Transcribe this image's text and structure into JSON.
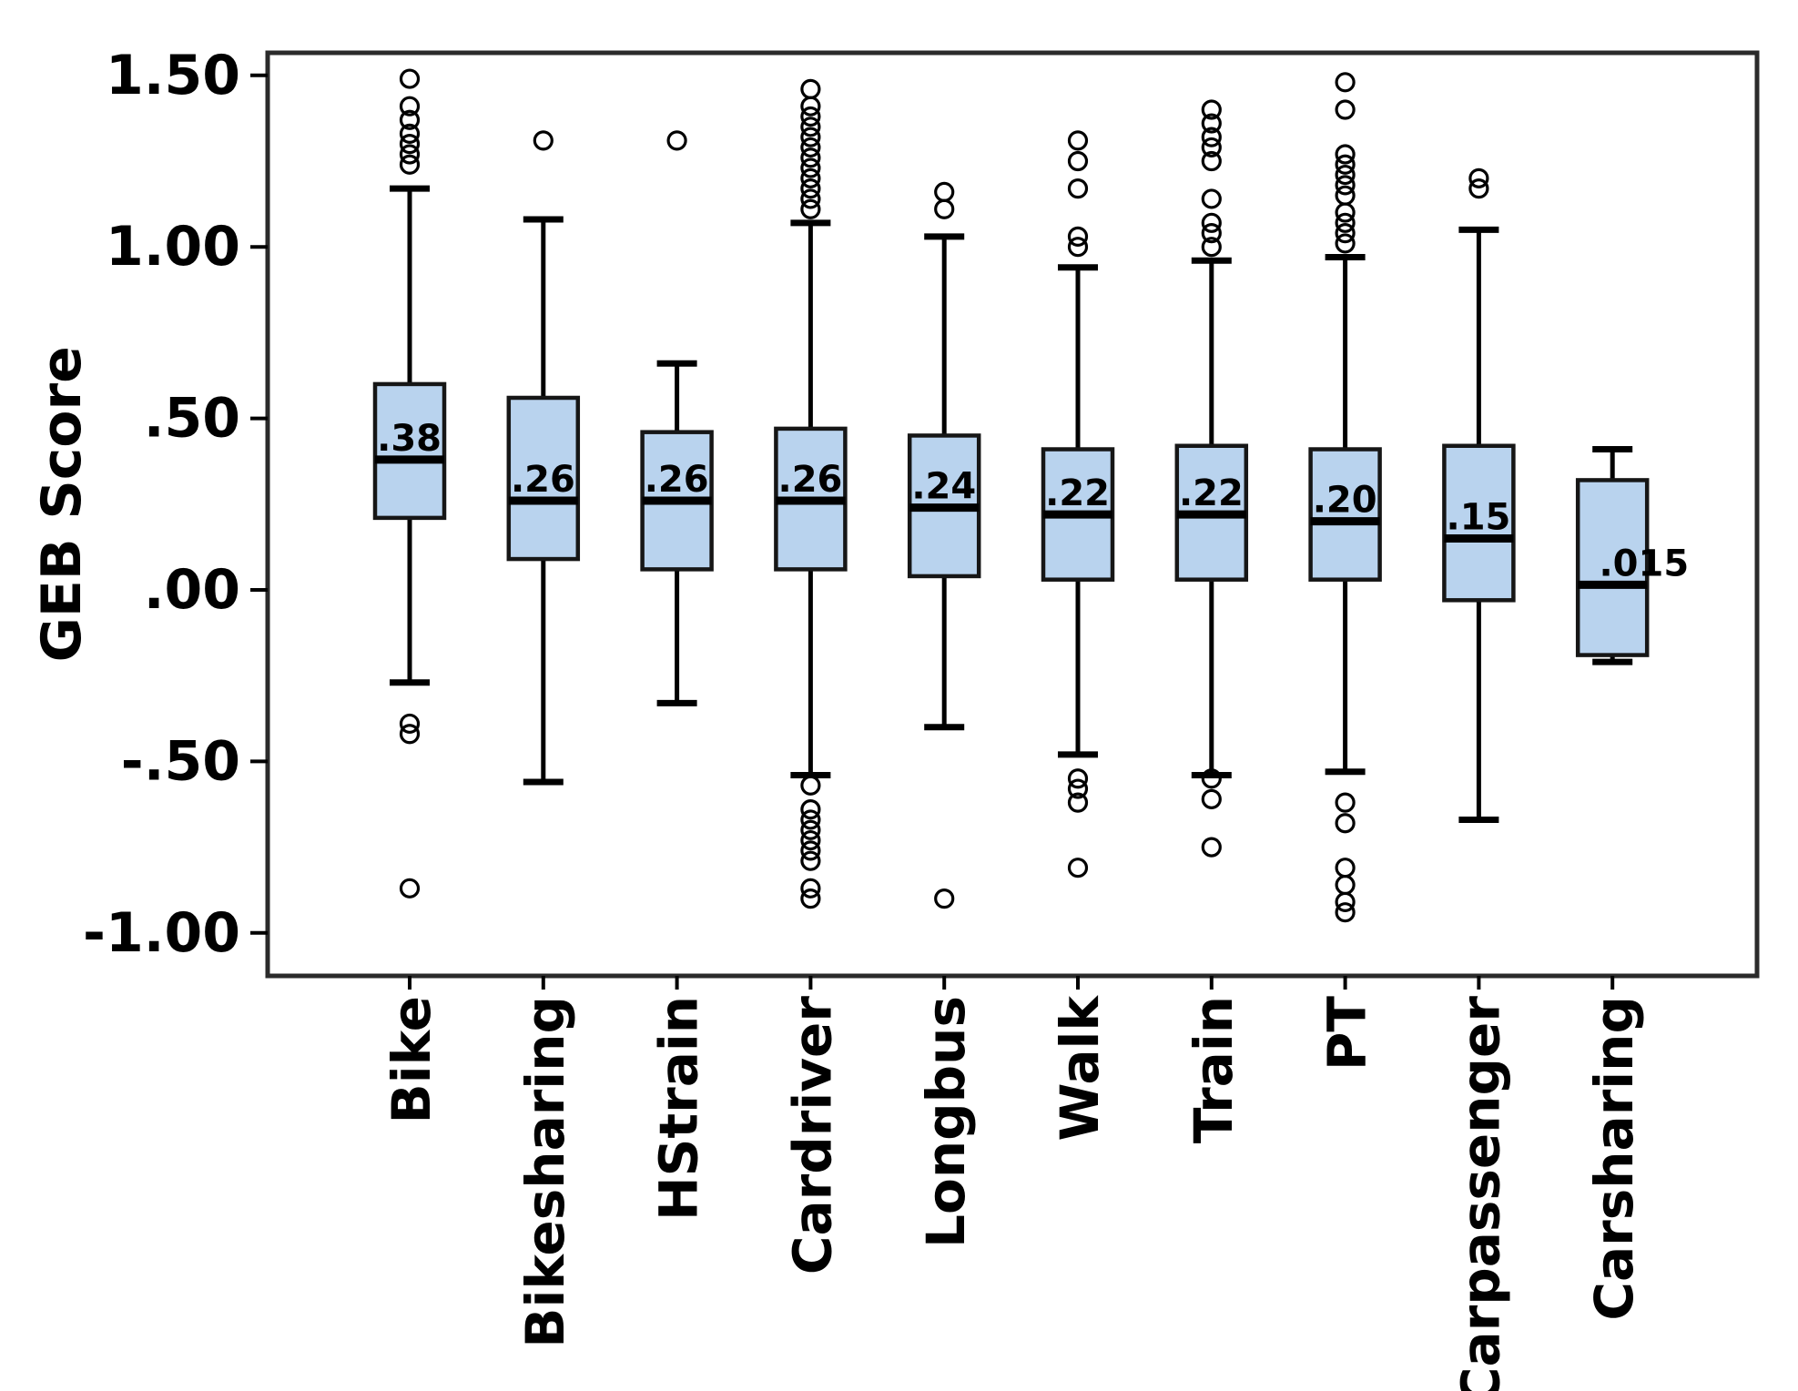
{
  "figure": {
    "background": "#ffffff",
    "y_axis_title": "GEB Score"
  },
  "chart_data": {
    "type": "boxplot",
    "title": "",
    "xlabel": "",
    "ylabel": "GEB Score",
    "ylim": [
      -1.125,
      1.565
    ],
    "grid": false,
    "legend": "none",
    "y_tick_values": [
      1.5,
      1.0,
      0.5,
      0.0,
      -0.5,
      -1.0
    ],
    "y_tick_labels": [
      "1.50",
      "1.00",
      ".50",
      ".00",
      "-.50",
      "-1.00"
    ],
    "categories": [
      "Bike",
      "Bikesharing",
      "HStrain",
      "Cardriver",
      "Longbus",
      "Walk",
      "Train",
      "PT",
      "Carpassenger",
      "Carsharing"
    ],
    "series": [
      {
        "name": "Bike",
        "median_label": ".38",
        "median": 0.38,
        "q1": 0.21,
        "q3": 0.6,
        "whisker_low": -0.27,
        "whisker_high": 1.17,
        "outliers_high": [
          1.49,
          1.41,
          1.37,
          1.33,
          1.3,
          1.27,
          1.24
        ],
        "outliers_low": [
          -0.39,
          -0.42,
          -0.87
        ]
      },
      {
        "name": "Bikesharing",
        "median_label": ".26",
        "median": 0.26,
        "q1": 0.09,
        "q3": 0.56,
        "whisker_low": -0.56,
        "whisker_high": 1.08,
        "outliers_high": [
          1.31
        ],
        "outliers_low": []
      },
      {
        "name": "HStrain",
        "median_label": ".26",
        "median": 0.26,
        "q1": 0.06,
        "q3": 0.46,
        "whisker_low": -0.33,
        "whisker_high": 0.66,
        "outliers_high": [
          1.31
        ],
        "outliers_low": []
      },
      {
        "name": "Cardriver",
        "median_label": ".26",
        "median": 0.26,
        "q1": 0.06,
        "q3": 0.47,
        "whisker_low": -0.54,
        "whisker_high": 1.07,
        "outliers_high": [
          1.46,
          1.41,
          1.38,
          1.35,
          1.32,
          1.29,
          1.26,
          1.23,
          1.2,
          1.17,
          1.14,
          1.11
        ],
        "outliers_low": [
          -0.57,
          -0.64,
          -0.67,
          -0.7,
          -0.73,
          -0.76,
          -0.79,
          -0.87,
          -0.9
        ]
      },
      {
        "name": "Longbus",
        "median_label": ".24",
        "median": 0.24,
        "q1": 0.04,
        "q3": 0.45,
        "whisker_low": -0.4,
        "whisker_high": 1.03,
        "outliers_high": [
          1.16,
          1.11
        ],
        "outliers_low": [
          -0.9
        ]
      },
      {
        "name": "Walk",
        "median_label": ".22",
        "median": 0.22,
        "q1": 0.03,
        "q3": 0.41,
        "whisker_low": -0.48,
        "whisker_high": 0.94,
        "outliers_high": [
          1.31,
          1.25,
          1.17,
          1.03,
          1.0
        ],
        "outliers_low": [
          -0.55,
          -0.58,
          -0.62,
          -0.81
        ]
      },
      {
        "name": "Train",
        "median_label": ".22",
        "median": 0.22,
        "q1": 0.03,
        "q3": 0.42,
        "whisker_low": -0.54,
        "whisker_high": 0.96,
        "outliers_high": [
          1.4,
          1.36,
          1.32,
          1.29,
          1.25,
          1.14,
          1.07,
          1.04,
          1.0
        ],
        "outliers_low": [
          -0.55,
          -0.61,
          -0.75
        ]
      },
      {
        "name": "PT",
        "median_label": ".20",
        "median": 0.2,
        "q1": 0.03,
        "q3": 0.41,
        "whisker_low": -0.53,
        "whisker_high": 0.97,
        "outliers_high": [
          1.48,
          1.4,
          1.27,
          1.24,
          1.21,
          1.18,
          1.15,
          1.1,
          1.07,
          1.04,
          1.01
        ],
        "outliers_low": [
          -0.62,
          -0.68,
          -0.81,
          -0.86,
          -0.91,
          -0.94
        ]
      },
      {
        "name": "Carpassenger",
        "median_label": ".15",
        "median": 0.15,
        "q1": -0.03,
        "q3": 0.42,
        "whisker_low": -0.67,
        "whisker_high": 1.05,
        "outliers_high": [
          1.2,
          1.17
        ],
        "outliers_low": []
      },
      {
        "name": "Carsharing",
        "median_label": ".015",
        "median": 0.015,
        "q1": -0.19,
        "q3": 0.32,
        "whisker_low": -0.21,
        "whisker_high": 0.41,
        "outliers_high": [],
        "outliers_low": []
      }
    ],
    "colors": {
      "box_fill": "#b9d3ee",
      "box_border": "#161616",
      "median_line": "#000000",
      "whisker": "#000000",
      "outlier_stroke": "#000000",
      "frame": "#2b2b2b",
      "text": "#000000"
    }
  }
}
